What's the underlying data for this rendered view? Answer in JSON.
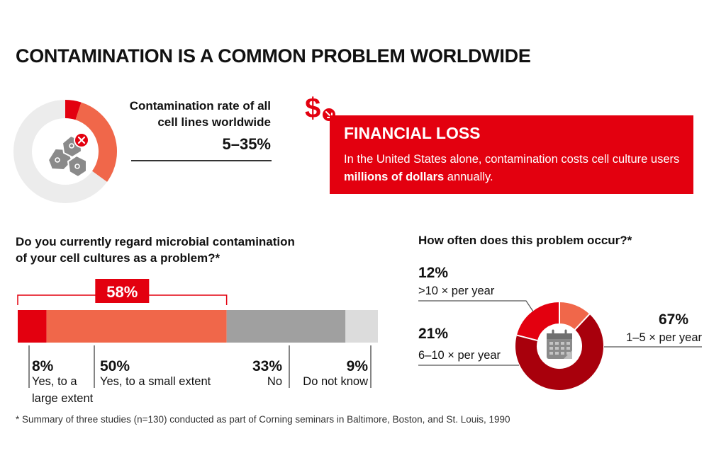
{
  "title": "CONTAMINATION IS A COMMON PROBLEM WORLDWIDE",
  "colors": {
    "red": "#e3000f",
    "salmon": "#f0674a",
    "gray": "#a0a0a0",
    "light_gray": "#dcdcdc",
    "ring_gray": "#ececec",
    "dark_red": "#a8000c"
  },
  "contamination_rate": {
    "label_line1": "Contamination rate of all",
    "label_line2": "cell lines worldwide",
    "value": "5–35%",
    "range_percent": [
      5,
      35
    ],
    "icon": "cells-with-x-icon"
  },
  "financial_loss": {
    "icon": "dollar-down-arrow-icon",
    "title": "FINANCIAL LOSS",
    "text_before": "In the United States alone, contamination costs cell culture users ",
    "text_bold": "millions of dollars",
    "text_after": " annually."
  },
  "footnote": "* Summary of three studies (n=130) conducted as part of Corning seminars in Baltimore, Boston, and St. Louis, 1990",
  "chart_data": [
    {
      "type": "bar",
      "orientation": "stacked-horizontal",
      "title_line1": "Do you currently regard microbial contamination",
      "title_line2": "of your cell cultures as a problem?*",
      "bracket_label": "58%",
      "bracket_value": 58,
      "segments": [
        {
          "value": 8,
          "label": "8%",
          "desc_lines": [
            "Yes, to a",
            "large extent"
          ],
          "color": "#e3000f"
        },
        {
          "value": 50,
          "label": "50%",
          "desc_lines": [
            "Yes, to a small extent"
          ],
          "color": "#f0674a"
        },
        {
          "value": 33,
          "label": "33%",
          "desc_lines": [
            "No"
          ],
          "color": "#a0a0a0"
        },
        {
          "value": 9,
          "label": "9%",
          "desc_lines": [
            "Do not know"
          ],
          "color": "#dcdcdc"
        }
      ]
    },
    {
      "type": "pie",
      "style": "donut",
      "title": "How often does this problem occur?*",
      "icon": "calendar-icon",
      "slices": [
        {
          "value": 12,
          "label": "12%",
          "desc": ">10 × per year",
          "color": "#f0674a"
        },
        {
          "value": 67,
          "label": "67%",
          "desc": "1–5 × per year",
          "color": "#a8000c"
        },
        {
          "value": 21,
          "label": "21%",
          "desc": "6–10 × per year",
          "color": "#e3000f"
        }
      ]
    }
  ]
}
